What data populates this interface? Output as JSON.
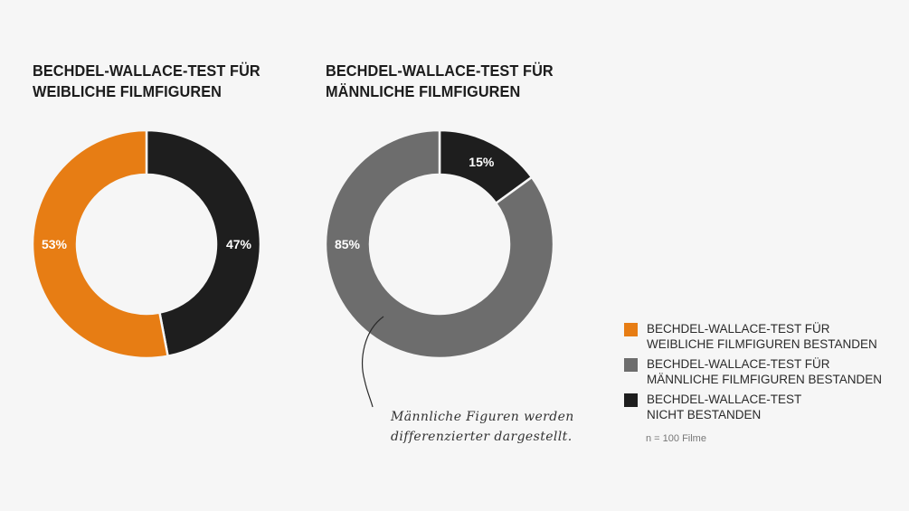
{
  "charts": {
    "left": {
      "title_lines": [
        "BECHDEL-WALLACE-TEST FÜR",
        "WEIBLICHE FILMFIGUREN"
      ]
    },
    "right": {
      "title_lines": [
        "BECHDEL-WALLACE-TEST FÜR",
        "MÄNNLICHE FILMFIGUREN"
      ]
    }
  },
  "chart_data": [
    {
      "type": "pie",
      "title": "BECHDEL-WALLACE-TEST FÜR WEIBLICHE FILMFIGUREN",
      "slices": [
        {
          "label": "47%",
          "value": 47,
          "color": "#1e1e1e"
        },
        {
          "label": "53%",
          "value": 53,
          "color": "#e77d14"
        }
      ]
    },
    {
      "type": "pie",
      "title": "BECHDEL-WALLACE-TEST FÜR MÄNNLICHE FILMFIGUREN",
      "slices": [
        {
          "label": "15%",
          "value": 15,
          "color": "#1e1e1e"
        },
        {
          "label": "85%",
          "value": 85,
          "color": "#6d6d6d"
        }
      ]
    }
  ],
  "legend": {
    "items": [
      {
        "lines": [
          "BECHDEL-WALLACE-TEST FÜR",
          "WEIBLICHE FILMFIGUREN BESTANDEN"
        ],
        "color": "#e77d14"
      },
      {
        "lines": [
          "BECHDEL-WALLACE-TEST FÜR",
          "MÄNNLICHE FILMFIGUREN BESTANDEN"
        ],
        "color": "#6d6d6d"
      },
      {
        "lines": [
          "BECHDEL-WALLACE-TEST",
          "NICHT BESTANDEN"
        ],
        "color": "#1e1e1e"
      }
    ],
    "note": "n = 100 Filme"
  },
  "annotation": {
    "lines": [
      "Männliche Figuren werden",
      "differenzierter dargestellt."
    ]
  }
}
